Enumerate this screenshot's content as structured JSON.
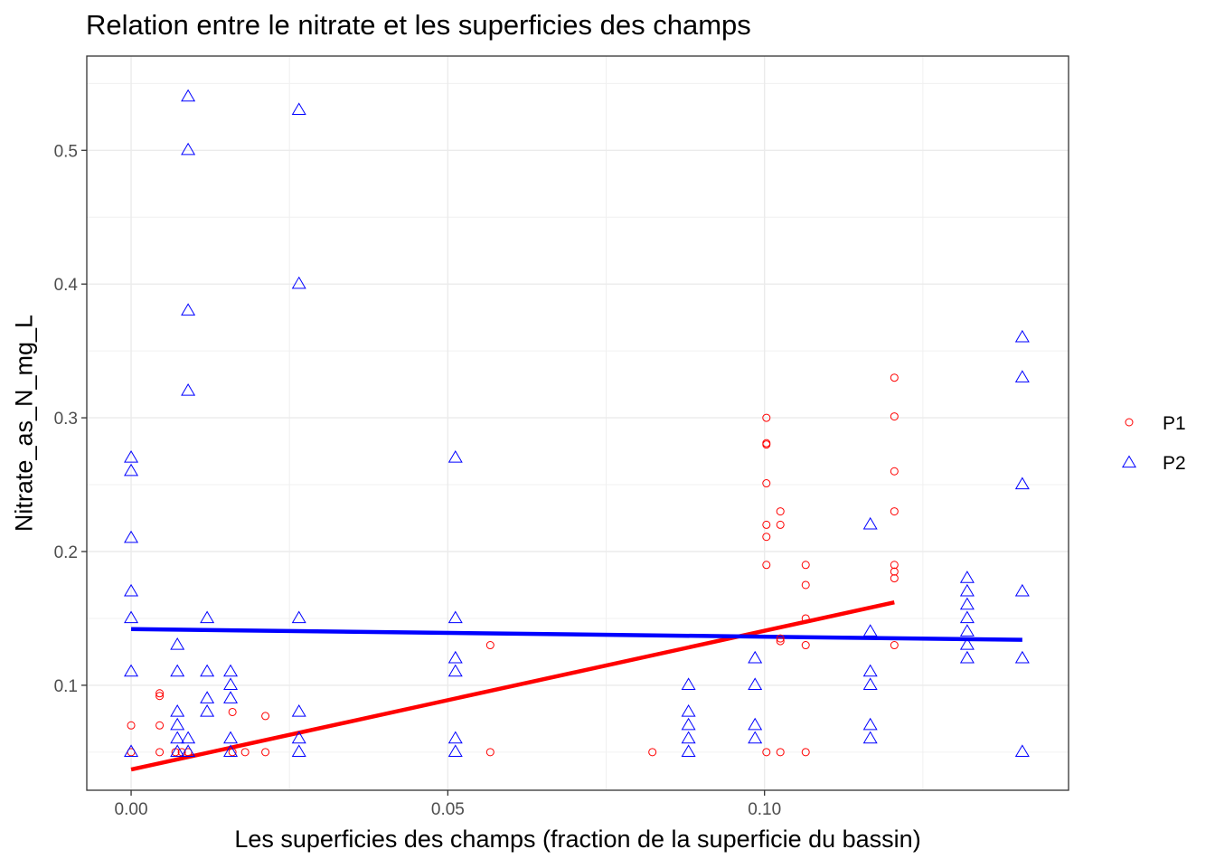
{
  "chart_data": {
    "type": "scatter",
    "title": "Relation entre le nitrate et les superficies des champs",
    "xlabel": "Les superficies des champs (fraction de la superficie du bassin)",
    "ylabel": "Nitrate_as_N_mg_L",
    "xlim": [
      -0.007,
      0.148
    ],
    "ylim": [
      0.0215,
      0.5705
    ],
    "x_ticks": [
      0.0,
      0.05,
      0.1
    ],
    "x_tick_labels": [
      "0.00",
      "0.05",
      "0.10"
    ],
    "y_ticks": [
      0.1,
      0.2,
      0.3,
      0.4,
      0.5
    ],
    "y_tick_labels": [
      "0.1",
      "0.2",
      "0.3",
      "0.4",
      "0.5"
    ],
    "grid": true,
    "legend_position": "right",
    "series": [
      {
        "name": "P1",
        "marker": "circle",
        "color": "#ff0000",
        "points": [
          [
            0.0,
            0.07
          ],
          [
            0.0,
            0.05
          ],
          [
            0.0045,
            0.094
          ],
          [
            0.0045,
            0.092
          ],
          [
            0.0045,
            0.07
          ],
          [
            0.0045,
            0.05
          ],
          [
            0.007,
            0.05
          ],
          [
            0.008,
            0.05
          ],
          [
            0.009,
            0.05
          ],
          [
            0.016,
            0.08
          ],
          [
            0.016,
            0.05
          ],
          [
            0.018,
            0.05
          ],
          [
            0.0212,
            0.077
          ],
          [
            0.0212,
            0.05
          ],
          [
            0.0567,
            0.13
          ],
          [
            0.0567,
            0.05
          ],
          [
            0.0823,
            0.05
          ],
          [
            0.1003,
            0.3
          ],
          [
            0.1003,
            0.281
          ],
          [
            0.1003,
            0.28
          ],
          [
            0.1003,
            0.251
          ],
          [
            0.1003,
            0.22
          ],
          [
            0.1003,
            0.211
          ],
          [
            0.1003,
            0.19
          ],
          [
            0.1003,
            0.05
          ],
          [
            0.1025,
            0.23
          ],
          [
            0.1025,
            0.22
          ],
          [
            0.1025,
            0.135
          ],
          [
            0.1025,
            0.133
          ],
          [
            0.1025,
            0.05
          ],
          [
            0.1065,
            0.19
          ],
          [
            0.1065,
            0.175
          ],
          [
            0.1065,
            0.15
          ],
          [
            0.1065,
            0.13
          ],
          [
            0.1065,
            0.05
          ],
          [
            0.1205,
            0.33
          ],
          [
            0.1205,
            0.301
          ],
          [
            0.1205,
            0.26
          ],
          [
            0.1205,
            0.23
          ],
          [
            0.1205,
            0.19
          ],
          [
            0.1205,
            0.185
          ],
          [
            0.1205,
            0.18
          ],
          [
            0.1205,
            0.13
          ]
        ],
        "trend": [
          [
            0.0,
            0.037
          ],
          [
            0.1205,
            0.162
          ]
        ]
      },
      {
        "name": "P2",
        "marker": "triangle",
        "color": "#0000ff",
        "points": [
          [
            0.0,
            0.27
          ],
          [
            0.0,
            0.26
          ],
          [
            0.0,
            0.21
          ],
          [
            0.0,
            0.17
          ],
          [
            0.0,
            0.15
          ],
          [
            0.0,
            0.11
          ],
          [
            0.0,
            0.05
          ],
          [
            0.009,
            0.54
          ],
          [
            0.009,
            0.5
          ],
          [
            0.009,
            0.38
          ],
          [
            0.009,
            0.32
          ],
          [
            0.009,
            0.06
          ],
          [
            0.009,
            0.05
          ],
          [
            0.0073,
            0.13
          ],
          [
            0.0073,
            0.11
          ],
          [
            0.0073,
            0.08
          ],
          [
            0.0073,
            0.07
          ],
          [
            0.0073,
            0.06
          ],
          [
            0.0073,
            0.05
          ],
          [
            0.012,
            0.15
          ],
          [
            0.012,
            0.11
          ],
          [
            0.012,
            0.09
          ],
          [
            0.012,
            0.08
          ],
          [
            0.0157,
            0.11
          ],
          [
            0.0157,
            0.1
          ],
          [
            0.0157,
            0.09
          ],
          [
            0.0157,
            0.06
          ],
          [
            0.0157,
            0.05
          ],
          [
            0.0265,
            0.53
          ],
          [
            0.0265,
            0.4
          ],
          [
            0.0265,
            0.15
          ],
          [
            0.0265,
            0.08
          ],
          [
            0.0265,
            0.06
          ],
          [
            0.0265,
            0.05
          ],
          [
            0.0512,
            0.27
          ],
          [
            0.0512,
            0.15
          ],
          [
            0.0512,
            0.12
          ],
          [
            0.0512,
            0.11
          ],
          [
            0.0512,
            0.06
          ],
          [
            0.0512,
            0.05
          ],
          [
            0.088,
            0.1
          ],
          [
            0.088,
            0.08
          ],
          [
            0.088,
            0.07
          ],
          [
            0.088,
            0.06
          ],
          [
            0.088,
            0.05
          ],
          [
            0.0985,
            0.12
          ],
          [
            0.0985,
            0.1
          ],
          [
            0.0985,
            0.07
          ],
          [
            0.0985,
            0.06
          ],
          [
            0.1167,
            0.22
          ],
          [
            0.1167,
            0.14
          ],
          [
            0.1167,
            0.11
          ],
          [
            0.1167,
            0.1
          ],
          [
            0.1167,
            0.07
          ],
          [
            0.1167,
            0.06
          ],
          [
            0.132,
            0.18
          ],
          [
            0.132,
            0.17
          ],
          [
            0.132,
            0.16
          ],
          [
            0.132,
            0.15
          ],
          [
            0.132,
            0.14
          ],
          [
            0.132,
            0.13
          ],
          [
            0.132,
            0.12
          ],
          [
            0.1407,
            0.36
          ],
          [
            0.1407,
            0.33
          ],
          [
            0.1407,
            0.25
          ],
          [
            0.1407,
            0.17
          ],
          [
            0.1407,
            0.12
          ],
          [
            0.1407,
            0.05
          ]
        ],
        "trend": [
          [
            0.0,
            0.142
          ],
          [
            0.1407,
            0.134
          ]
        ]
      }
    ]
  }
}
